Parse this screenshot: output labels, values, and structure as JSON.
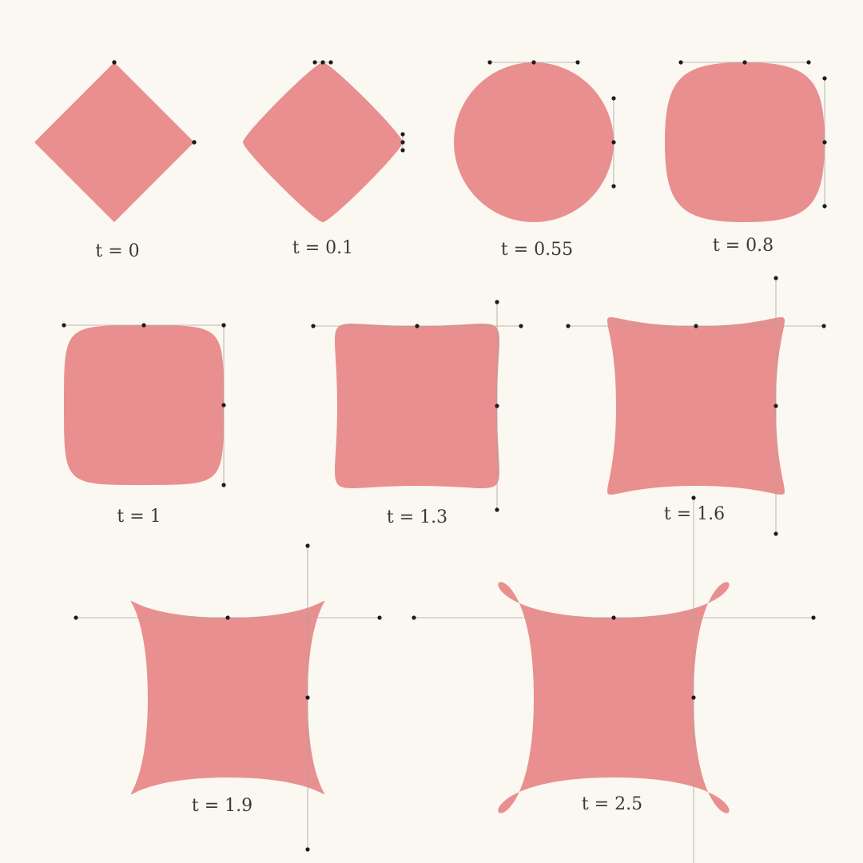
{
  "shape_color": "#e98f8f",
  "guide_color": "#a8a49c",
  "point_color": "#1c1c1c",
  "background": "#fbf8f1",
  "shapes": [
    {
      "label": "t = 0",
      "t": 0
    },
    {
      "label": "t = 0.1",
      "t": 0.1
    },
    {
      "label": "t = 0.55",
      "t": 0.55
    },
    {
      "label": "t = 0.8",
      "t": 0.8
    },
    {
      "label": "t = 1",
      "t": 1
    },
    {
      "label": "t = 1.3",
      "t": 1.3
    },
    {
      "label": "t = 1.6",
      "t": 1.6
    },
    {
      "label": "t = 1.9",
      "t": 1.9
    },
    {
      "label": "t = 2.5",
      "t": 2.5
    }
  ]
}
